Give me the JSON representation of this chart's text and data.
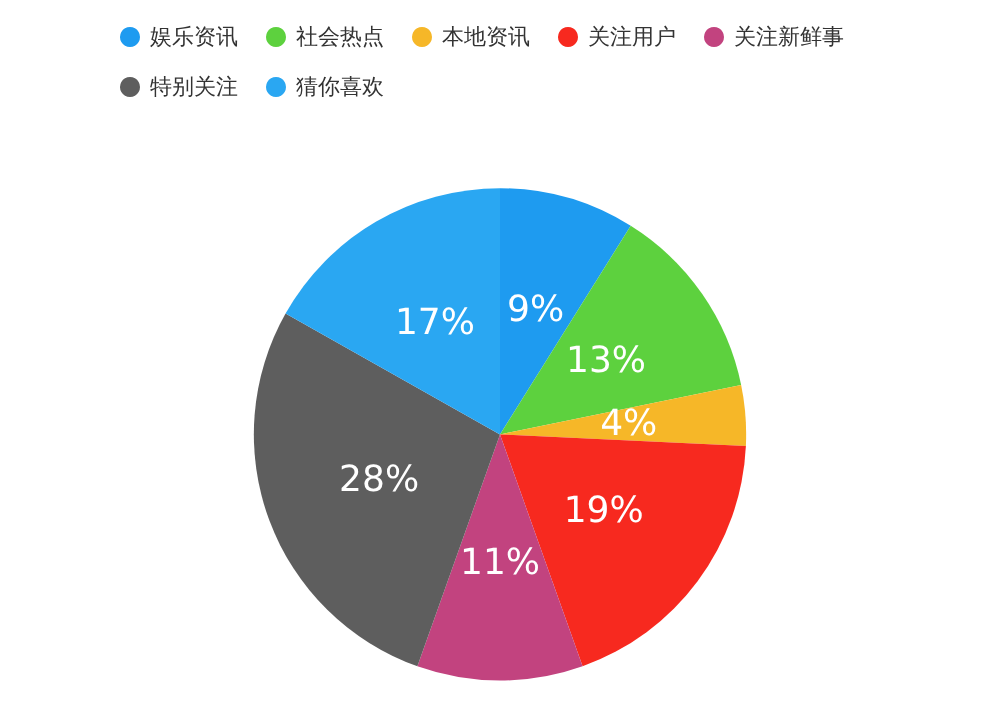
{
  "chart_data": {
    "type": "pie",
    "categories": [
      "娱乐资讯",
      "社会热点",
      "本地资讯",
      "关注用户",
      "关注新鲜事",
      "特别关注",
      "猜你喜欢"
    ],
    "values": [
      9,
      13,
      4,
      19,
      11,
      28,
      17
    ],
    "value_labels": [
      "9%",
      "13%",
      "4%",
      "19%",
      "11%",
      "28%",
      "17%"
    ],
    "colors": [
      "#1e9bf0",
      "#5dd13e",
      "#f6b728",
      "#f7291f",
      "#c2437f",
      "#5e5e5e",
      "#2aa7f2"
    ],
    "legend": "top left"
  }
}
